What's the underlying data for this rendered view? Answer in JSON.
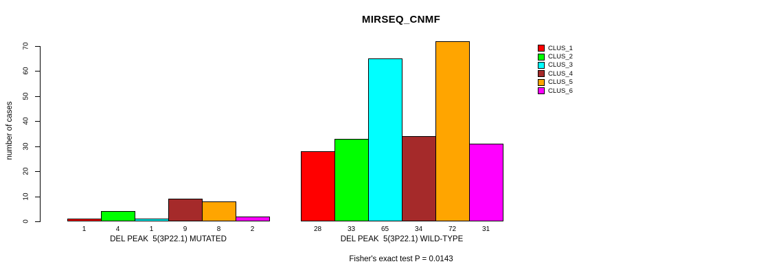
{
  "chart_data": {
    "type": "bar",
    "title": "MIRSEQ_CNMF",
    "ylabel": "number of cases",
    "xlabel": "",
    "ylim": [
      0,
      70
    ],
    "yticks": [
      0,
      10,
      20,
      30,
      40,
      50,
      60,
      70
    ],
    "grid": false,
    "legend_position": "right",
    "categories": [
      "CLUS_1",
      "CLUS_2",
      "CLUS_3",
      "CLUS_4",
      "CLUS_5",
      "CLUS_6"
    ],
    "series_colors": [
      "#FF0000",
      "#00FF00",
      "#00FFFF",
      "#A52A2A",
      "#FFA500",
      "#FF00FF"
    ],
    "groups": [
      {
        "label": "DEL PEAK  5(3P22.1) MUTATED",
        "values": [
          1,
          4,
          1,
          9,
          8,
          2
        ]
      },
      {
        "label": "DEL PEAK  5(3P22.1) WILD-TYPE",
        "values": [
          28,
          33,
          65,
          34,
          72,
          31
        ]
      }
    ],
    "legend": [
      {
        "label": "CLUS_1",
        "color": "#FF0000"
      },
      {
        "label": "CLUS_2",
        "color": "#00FF00"
      },
      {
        "label": "CLUS_3",
        "color": "#00FFFF"
      },
      {
        "label": "CLUS_4",
        "color": "#A52A2A"
      },
      {
        "label": "CLUS_5",
        "color": "#FFA500"
      },
      {
        "label": "CLUS_6",
        "color": "#FF00FF"
      }
    ],
    "annotation": "Fisher's exact test P = 0.0143",
    "bar_border_color": "#000000",
    "background_color": "#FFFFFF"
  }
}
